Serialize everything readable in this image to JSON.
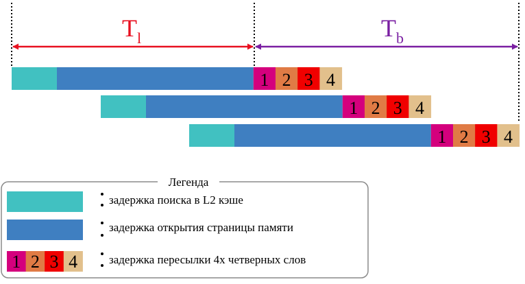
{
  "timing": {
    "t_l": {
      "main": "T",
      "sub": "l"
    },
    "t_b": {
      "main": "T",
      "sub": "b"
    }
  },
  "burst_labels": [
    "1",
    "2",
    "3",
    "4"
  ],
  "rows": [
    {
      "lookup": 1,
      "open": 4.3,
      "burst": 4
    },
    {
      "lookup": 1,
      "open": 4.3,
      "burst": 4
    },
    {
      "lookup": 1,
      "open": 4.3,
      "burst": 4
    }
  ],
  "legend": {
    "title": "Легенда",
    "items": [
      {
        "key": "lookup",
        "text": "задержка поиска в L2 кэше"
      },
      {
        "key": "open",
        "text": "задержка открытия страницы памяти"
      },
      {
        "key": "burst",
        "text": "задержка пересылки 4х четверных слов"
      }
    ]
  },
  "colors": {
    "lookup": "#41C1C1",
    "open": "#3F7FC1",
    "burst": [
      "#D4007D",
      "#E07B45",
      "#F00000",
      "#E2C08C"
    ],
    "t_l": "#E81020",
    "t_b": "#7A1FA2"
  }
}
